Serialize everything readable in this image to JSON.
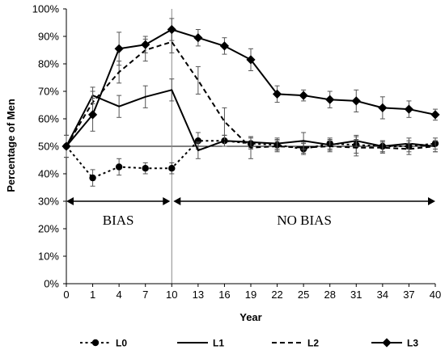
{
  "chart_data": {
    "type": "line",
    "title": "",
    "xlabel": "Year",
    "ylabel": "Percentage of Men",
    "x": [
      0,
      1,
      4,
      7,
      10,
      13,
      16,
      19,
      22,
      25,
      28,
      31,
      34,
      37,
      40
    ],
    "x_tick_labels": [
      "0",
      "1",
      "4",
      "7",
      "10",
      "13",
      "16",
      "19",
      "22",
      "25",
      "28",
      "31",
      "34",
      "37",
      "40"
    ],
    "ylim": [
      0,
      100
    ],
    "y_tick_labels": [
      "0%",
      "10%",
      "20%",
      "30%",
      "40%",
      "50%",
      "60%",
      "70%",
      "80%",
      "90%",
      "100%"
    ],
    "reference_line_y": 50,
    "grid": false,
    "legend_position": "bottom",
    "series": [
      {
        "name": "L0",
        "style": "solid",
        "marker": "circle",
        "values": [
          50,
          38.5,
          42.5,
          42,
          42,
          52,
          52,
          51,
          50.5,
          49,
          51,
          50.5,
          50,
          50,
          51
        ],
        "errors": [
          0,
          3,
          3,
          2,
          2,
          3,
          2,
          2,
          2,
          2,
          2,
          3,
          2,
          2,
          2
        ]
      },
      {
        "name": "L1",
        "style": "solid",
        "marker": "none",
        "values": [
          50,
          68.5,
          64.5,
          68,
          70.5,
          48.5,
          52,
          51.5,
          51,
          52,
          50.5,
          52,
          50,
          51,
          50
        ],
        "errors": [
          4,
          3,
          4,
          4,
          4,
          3,
          2,
          2,
          2,
          3,
          2,
          2,
          2,
          2,
          2
        ]
      },
      {
        "name": "L2",
        "style": "dashed",
        "marker": "none",
        "values": [
          50,
          66,
          77,
          85,
          88,
          74,
          59,
          49.5,
          50,
          49.5,
          50,
          49.5,
          49.5,
          49,
          50
        ],
        "errors": [
          4,
          4,
          4,
          4,
          4,
          5,
          5,
          4,
          2,
          2,
          2,
          3,
          2,
          2,
          2
        ]
      },
      {
        "name": "L3",
        "style": "solid",
        "marker": "diamond",
        "values": [
          50,
          61.5,
          85.5,
          87,
          92.5,
          89.5,
          86.5,
          81.5,
          69,
          68.5,
          67,
          66.5,
          64,
          63.5,
          61.5
        ],
        "errors": [
          4,
          6,
          6,
          3,
          4,
          3,
          3,
          4,
          3,
          2,
          3,
          4,
          4,
          3,
          2
        ]
      }
    ],
    "annotations": [
      {
        "text": "BIAS",
        "from_x": 0,
        "to_x": 10,
        "y": 30
      },
      {
        "text": "NO BIAS",
        "from_x": 10,
        "to_x": 40,
        "y": 30
      }
    ]
  }
}
